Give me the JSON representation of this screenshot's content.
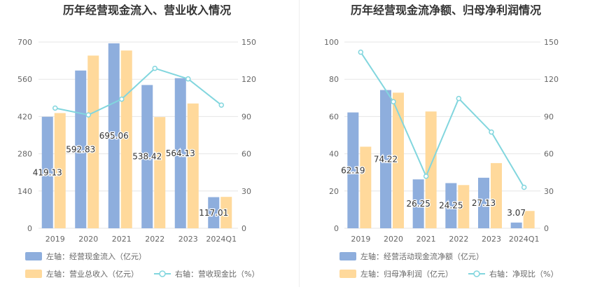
{
  "colors": {
    "bar_left": "#8eaedd",
    "bar_right": "#ffd99b",
    "line": "#82d6de",
    "grid": "#e6e6e6",
    "axis_text": "#666666",
    "label_text": "#333333"
  },
  "chart_data": [
    {
      "type": "bar+line",
      "title": "历年经营现金流入、营业收入情况",
      "categories": [
        "2019",
        "2020",
        "2021",
        "2022",
        "2023",
        "2024Q1"
      ],
      "left_axis": {
        "ticks": [
          "0",
          "140",
          "280",
          "420",
          "560",
          "700"
        ],
        "ylim": [
          0,
          700
        ]
      },
      "right_axis": {
        "ticks": [
          "0",
          "30",
          "60",
          "90",
          "120",
          "150"
        ],
        "ylim": [
          0,
          150
        ]
      },
      "series": [
        {
          "name": "左轴：经营现金流入（亿元）",
          "kind": "bar",
          "axis": "left",
          "values": [
            419.13,
            592.83,
            695.06,
            538.42,
            564.13,
            117.01
          ],
          "labels": [
            "419.13",
            "592.83",
            "695.06",
            "538.42",
            "564.13",
            "117.01"
          ]
        },
        {
          "name": "左轴：营业总收入（亿元）",
          "kind": "bar",
          "axis": "left",
          "values": [
            433,
            649,
            668,
            418,
            469,
            118
          ]
        },
        {
          "name": "右轴：营收现金比（%）",
          "kind": "line",
          "axis": "right",
          "values": [
            96.8,
            91.3,
            104.0,
            128.8,
            120.3,
            99.2
          ]
        }
      ]
    },
    {
      "type": "bar+line",
      "title": "历年经营现金流净额、归母净利润情况",
      "categories": [
        "2019",
        "2020",
        "2021",
        "2022",
        "2023",
        "2024Q1"
      ],
      "left_axis": {
        "ticks": [
          "0",
          "20",
          "40",
          "60",
          "80",
          "100"
        ],
        "ylim": [
          0,
          100
        ]
      },
      "right_axis": {
        "ticks": [
          "0",
          "30",
          "60",
          "90",
          "120",
          "150"
        ],
        "ylim": [
          0,
          150
        ]
      },
      "series": [
        {
          "name": "左轴：经营活动现金流净额（亿元）",
          "kind": "bar",
          "axis": "left",
          "values": [
            62.19,
            74.22,
            26.25,
            24.25,
            27.13,
            3.07
          ],
          "labels": [
            "62.19",
            "74.22",
            "26.25",
            "24.25",
            "27.13",
            "3.07"
          ]
        },
        {
          "name": "左轴：归母净利润（亿元）",
          "kind": "bar",
          "axis": "left",
          "values": [
            43.8,
            72.8,
            62.7,
            23.2,
            35.0,
            9.3
          ]
        },
        {
          "name": "右轴：净现比（%）",
          "kind": "line",
          "axis": "right",
          "values": [
            141.8,
            101.9,
            41.9,
            104.5,
            77.5,
            33.0
          ]
        }
      ]
    }
  ]
}
